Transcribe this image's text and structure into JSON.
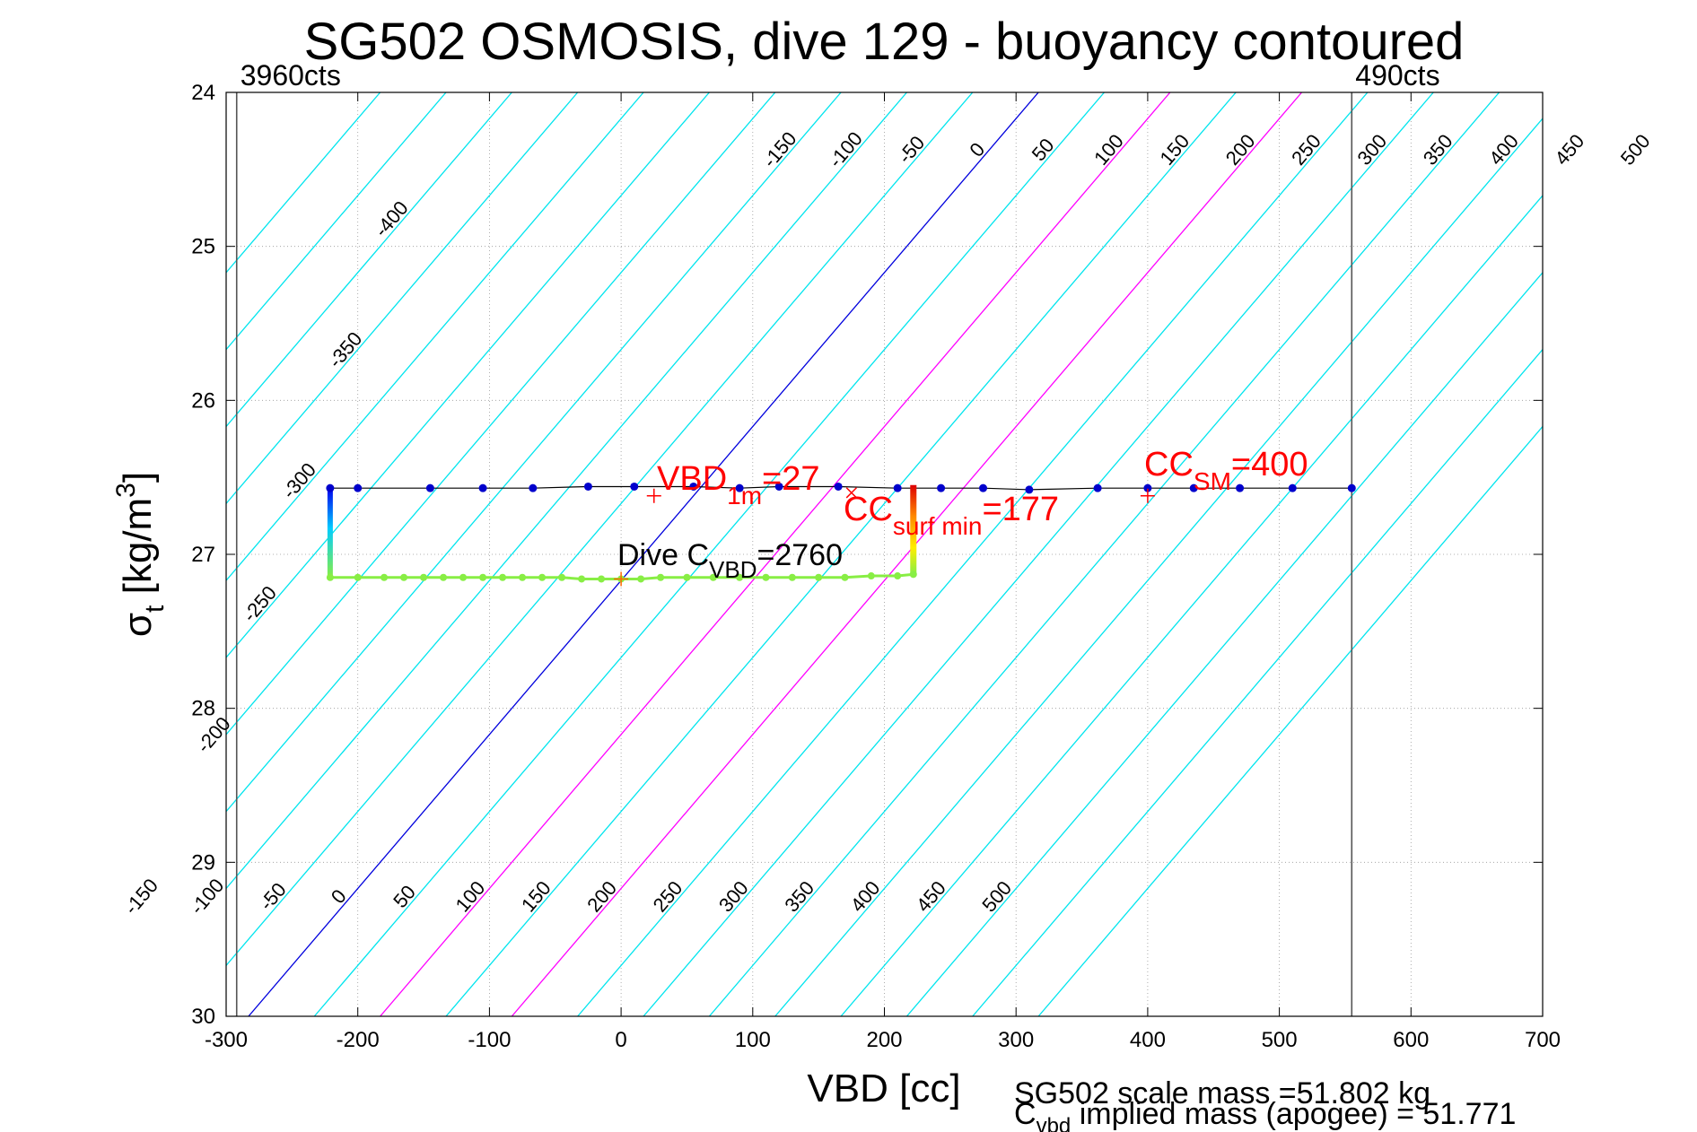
{
  "chart_data": {
    "type": "line",
    "title": "SG502 OSMOSIS, dive 129 - buoyancy contoured",
    "xlabel": "VBD [cc]",
    "ylabel_main": "σ",
    "ylabel_sub": "t",
    "ylabel_rest": " [kg/m",
    "ylabel_sup": "3",
    "ylabel_close": "]",
    "xlim": [
      -300,
      700
    ],
    "ylim": [
      24,
      30
    ],
    "y_reversed": true,
    "grid": true,
    "xticks": [
      -300,
      -200,
      -100,
      0,
      100,
      200,
      300,
      400,
      500,
      600,
      700
    ],
    "yticks": [
      24,
      25,
      26,
      27,
      28,
      29,
      30
    ],
    "contours": {
      "levels": [
        -400,
        -350,
        -300,
        -250,
        -200,
        -150,
        -100,
        -50,
        0,
        50,
        100,
        150,
        200,
        250,
        300,
        350,
        400,
        450,
        500
      ],
      "slope_cc_per_sigma": -100,
      "ref_sigma": 27.15,
      "zero_at_ref_vbd": 2,
      "color": "#00e5ee",
      "zero_color": "#0000dd",
      "highlight_levels": [
        100,
        200
      ],
      "highlight_color": "#ff00ff",
      "top_labels": [
        -150,
        -100,
        -50,
        0,
        50,
        100,
        150,
        200,
        250,
        300,
        350,
        400,
        450,
        500
      ],
      "bottom_labels": [
        -150,
        -100,
        -50,
        0,
        50,
        100,
        150,
        200,
        250,
        300,
        350,
        400,
        450,
        500
      ],
      "left_labels": [
        {
          "level": -400,
          "sigma": 24.85
        },
        {
          "level": -350,
          "sigma": 25.7
        },
        {
          "level": -300,
          "sigma": 26.55
        },
        {
          "level": -250,
          "sigma": 27.35
        },
        {
          "level": -200,
          "sigma": 28.2
        }
      ]
    },
    "limit_lines": [
      {
        "vbd": -292,
        "label": "3960cts"
      },
      {
        "vbd": 555,
        "label": "490cts"
      }
    ],
    "descent": {
      "color": "#0000cc",
      "points": [
        [
          -221,
          26.57
        ],
        [
          -200,
          26.57
        ],
        [
          -145,
          26.57
        ],
        [
          -105,
          26.57
        ],
        [
          -67,
          26.57
        ],
        [
          -25,
          26.56
        ],
        [
          10,
          26.56
        ],
        [
          55,
          26.56
        ],
        [
          90,
          26.57
        ],
        [
          120,
          26.56
        ],
        [
          165,
          26.56
        ],
        [
          210,
          26.57
        ],
        [
          243,
          26.57
        ],
        [
          275,
          26.57
        ],
        [
          310,
          26.58
        ],
        [
          362,
          26.57
        ],
        [
          400,
          26.57
        ],
        [
          435,
          26.57
        ],
        [
          470,
          26.57
        ],
        [
          510,
          26.57
        ],
        [
          555,
          26.57
        ]
      ]
    },
    "ascent": {
      "color": "#88ee44",
      "points": [
        [
          -221,
          27.15
        ],
        [
          -200,
          27.15
        ],
        [
          -180,
          27.15
        ],
        [
          -165,
          27.15
        ],
        [
          -150,
          27.15
        ],
        [
          -135,
          27.15
        ],
        [
          -120,
          27.15
        ],
        [
          -105,
          27.15
        ],
        [
          -90,
          27.15
        ],
        [
          -75,
          27.15
        ],
        [
          -60,
          27.15
        ],
        [
          -45,
          27.15
        ],
        [
          -30,
          27.16
        ],
        [
          -15,
          27.16
        ],
        [
          0,
          27.16
        ],
        [
          15,
          27.16
        ],
        [
          30,
          27.15
        ],
        [
          50,
          27.15
        ],
        [
          70,
          27.15
        ],
        [
          90,
          27.15
        ],
        [
          110,
          27.15
        ],
        [
          130,
          27.15
        ],
        [
          150,
          27.15
        ],
        [
          170,
          27.15
        ],
        [
          190,
          27.14
        ],
        [
          210,
          27.14
        ],
        [
          222,
          27.13
        ]
      ]
    },
    "markers": [
      {
        "vbd": 25,
        "sigma": 26.62,
        "shape": "plus",
        "color": "#ff0000"
      },
      {
        "vbd": 400,
        "sigma": 26.62,
        "shape": "plus",
        "color": "#ff0000"
      },
      {
        "vbd": 175,
        "sigma": 26.6,
        "shape": "x",
        "color": "#ff0000"
      },
      {
        "vbd": 0,
        "sigma": 27.16,
        "shape": "plus",
        "color": "#ff6600"
      }
    ],
    "annotations": {
      "vbd1m": {
        "main": "VBD",
        "sub": "1m",
        "rest": "=27",
        "color": "#ff0000"
      },
      "ccsm": {
        "main": "CC",
        "sub": "SM",
        "rest": "=400",
        "color": "#ff0000"
      },
      "ccsurf": {
        "main": "CC",
        "sub": "surf min",
        "rest": "=177",
        "color": "#ff0000"
      },
      "divec": {
        "main": "Dive C",
        "sub": "VBD",
        "rest": "=2760",
        "color": "#000000"
      }
    },
    "footer": {
      "line1": "SG502 scale mass =51.802 kg",
      "line2_main": "C",
      "line2_sub": "vbd",
      "line2_rest": " implied mass (apogee) = 51.771"
    }
  }
}
